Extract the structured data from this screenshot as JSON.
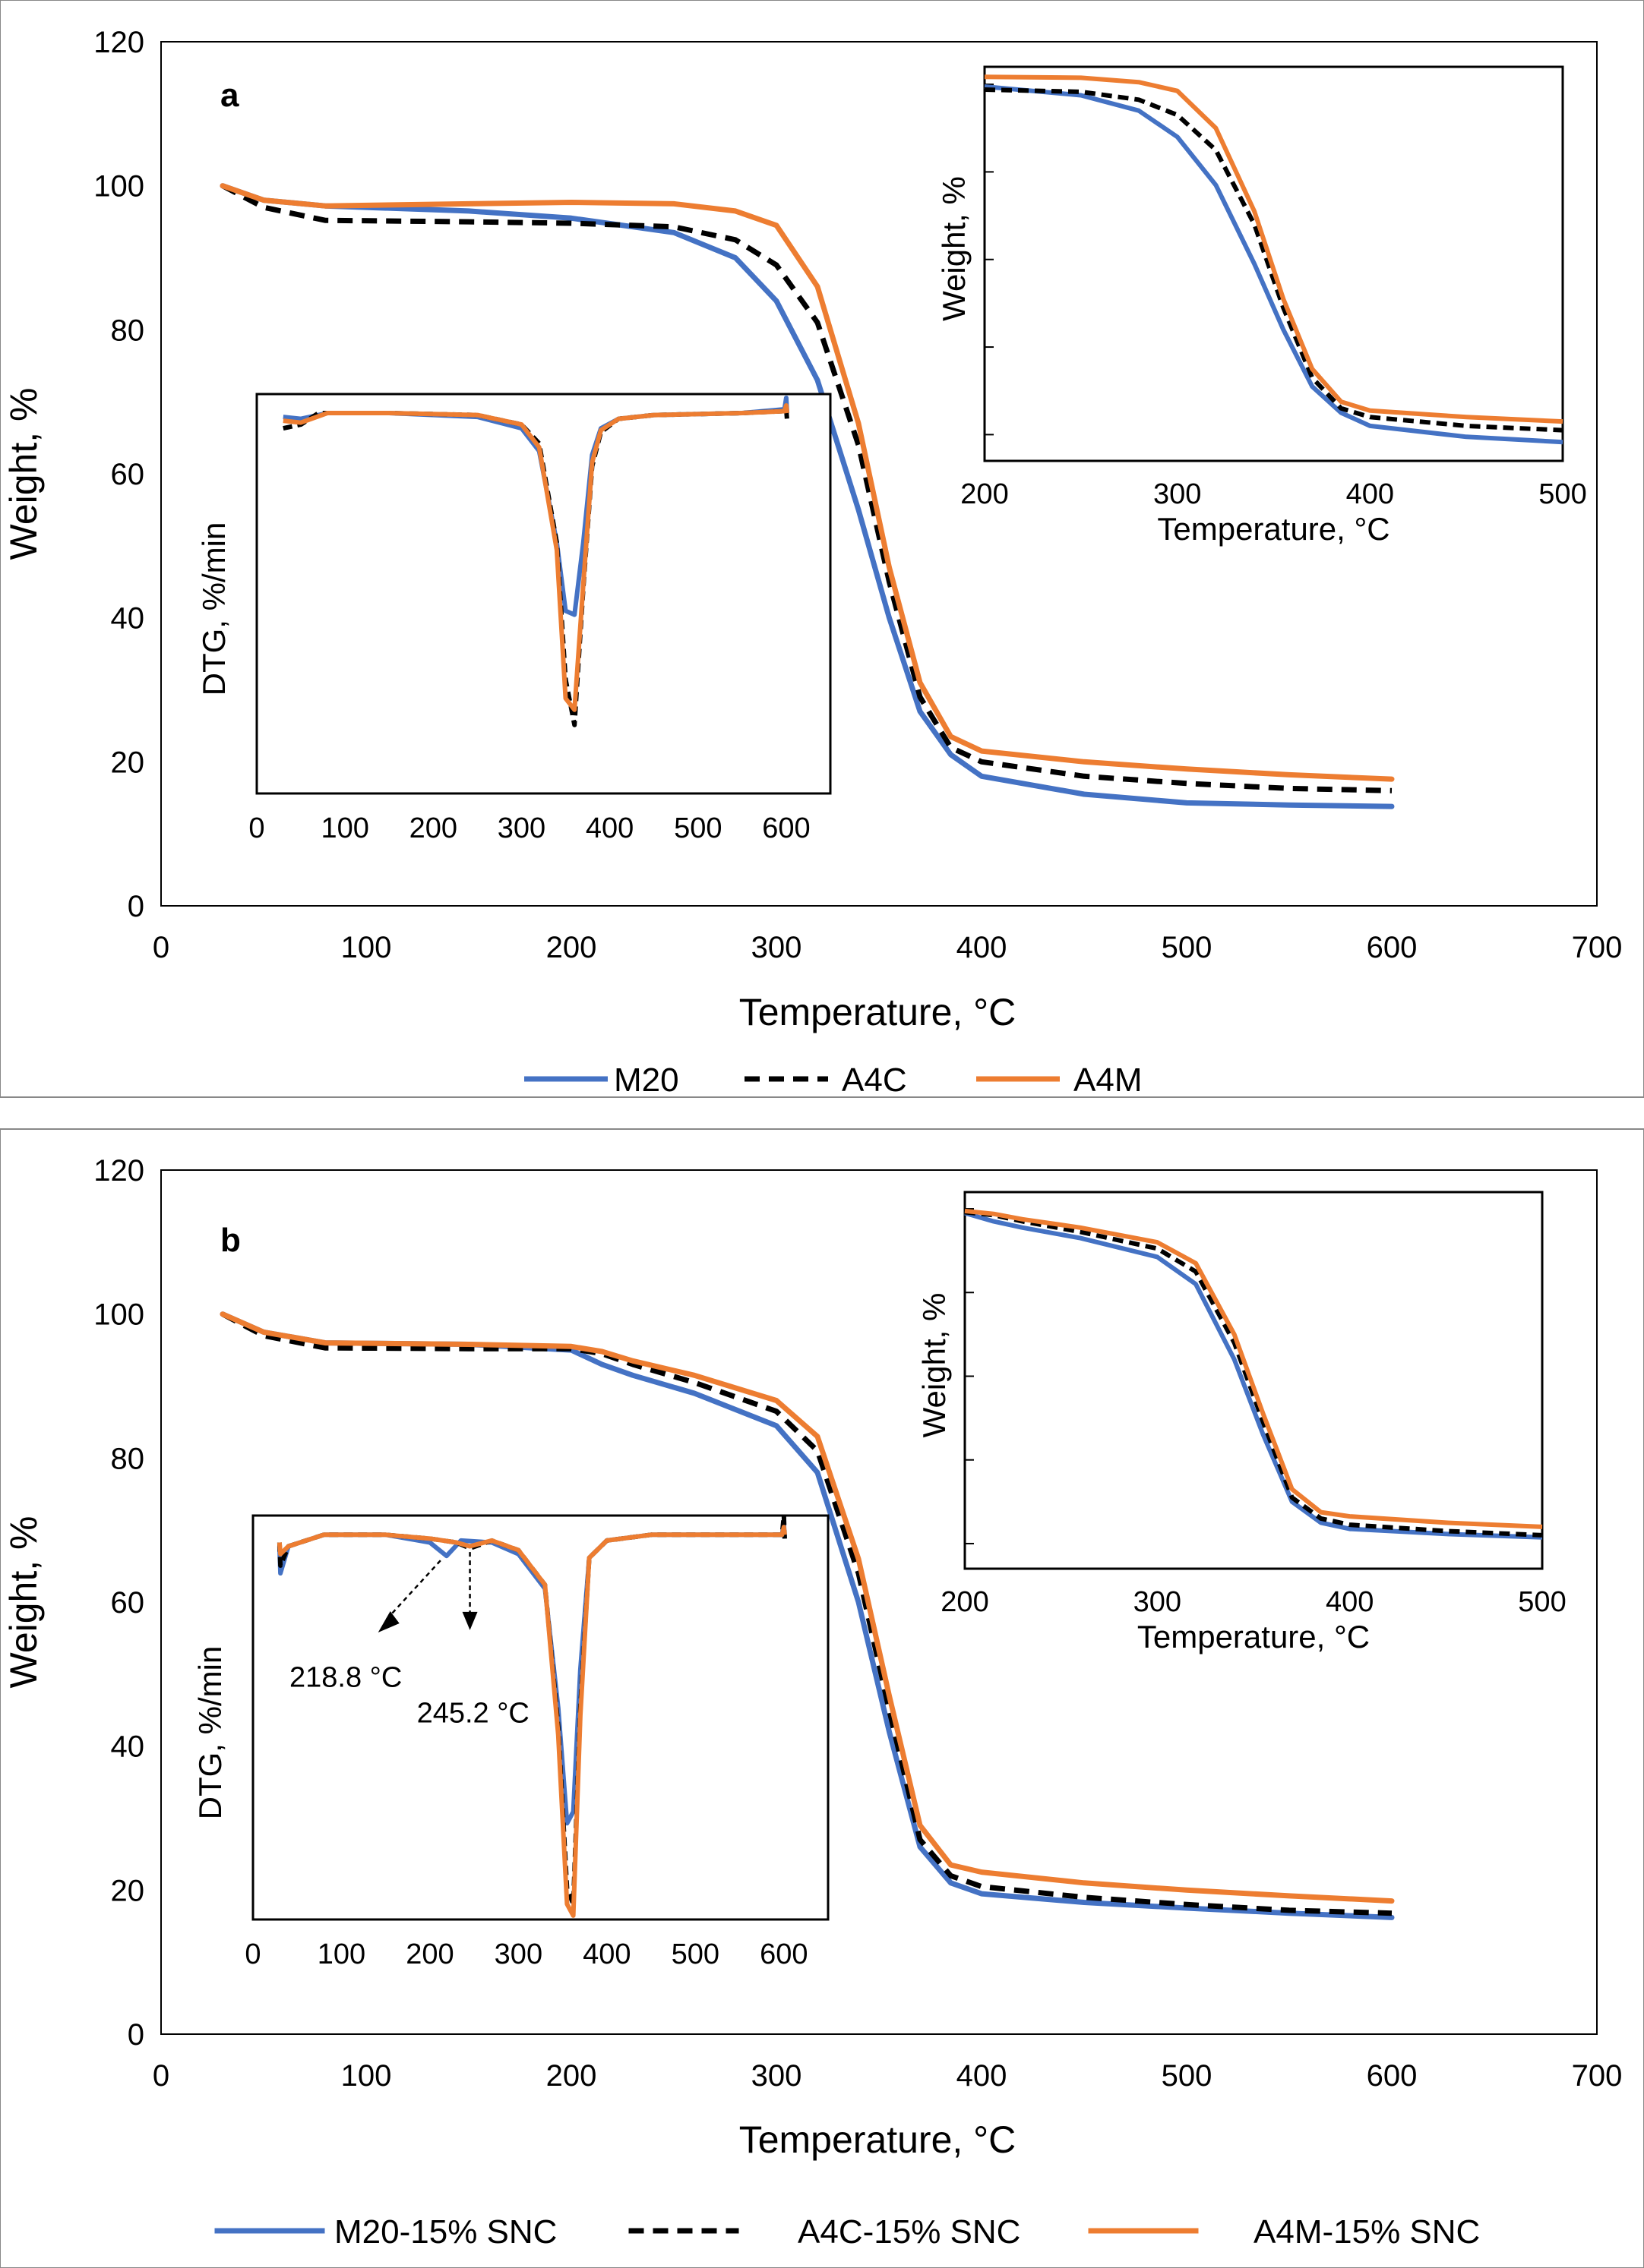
{
  "colors": {
    "M20": "#4472C4",
    "A4C": "#000000",
    "A4M": "#ED7D31",
    "axis": "#000000",
    "plot_border": "#000000"
  },
  "chart_data": [
    {
      "panel": "a",
      "type": "line",
      "xlabel": "Temperature, °C",
      "ylabel": "Weight, %",
      "xlim": [
        0,
        700
      ],
      "ylim": [
        0,
        120
      ],
      "xticks": [
        0,
        100,
        200,
        300,
        400,
        500,
        600,
        700
      ],
      "yticks": [
        0,
        20,
        40,
        60,
        80,
        100,
        120
      ],
      "legend": [
        "M20",
        "A4C",
        "A4M"
      ],
      "series": [
        {
          "name": "M20",
          "style": "solid",
          "color_key": "M20",
          "x": [
            30,
            50,
            80,
            150,
            200,
            250,
            280,
            300,
            320,
            340,
            355,
            370,
            385,
            400,
            450,
            500,
            550,
            600
          ],
          "y": [
            100,
            98,
            97.2,
            96.5,
            95.5,
            93.5,
            90,
            84,
            73,
            55,
            40,
            27,
            21,
            18,
            15.5,
            14.3,
            14,
            13.8
          ]
        },
        {
          "name": "A4C",
          "style": "dashed",
          "color_key": "A4C",
          "x": [
            30,
            50,
            80,
            150,
            200,
            250,
            280,
            300,
            320,
            340,
            355,
            370,
            385,
            400,
            450,
            500,
            550,
            600
          ],
          "y": [
            100,
            97,
            95.2,
            95,
            94.8,
            94.3,
            92.5,
            89,
            81,
            64,
            45,
            29,
            22,
            20,
            18,
            17,
            16.3,
            16
          ]
        },
        {
          "name": "A4M",
          "style": "solid",
          "color_key": "A4M",
          "x": [
            30,
            50,
            80,
            150,
            200,
            250,
            280,
            300,
            320,
            340,
            355,
            370,
            385,
            400,
            450,
            500,
            550,
            600
          ],
          "y": [
            100,
            98,
            97.2,
            97.5,
            97.7,
            97.5,
            96.5,
            94.5,
            86,
            67,
            47,
            31,
            23.5,
            21.5,
            20,
            19,
            18.2,
            17.6
          ]
        }
      ],
      "insets": [
        {
          "type": "line",
          "ylabel": "DTG, %/min",
          "xlim": [
            0,
            650
          ],
          "xticks": [
            0,
            100,
            200,
            300,
            400,
            500,
            600
          ],
          "ylim": [
            -10,
            0.5
          ],
          "series": [
            {
              "name": "M20",
              "x": [
                30,
                50,
                80,
                150,
                250,
                300,
                320,
                340,
                350,
                360,
                370,
                380,
                390,
                410,
                450,
                550,
                598,
                600,
                601
              ],
              "y": [
                -0.1,
                -0.15,
                0,
                0,
                -0.1,
                -0.4,
                -1,
                -3.4,
                -5.2,
                -5.3,
                -3.4,
                -1.1,
                -0.4,
                -0.15,
                -0.05,
                0,
                0.1,
                0.4,
                0
              ]
            },
            {
              "name": "A4C",
              "x": [
                30,
                50,
                70,
                150,
                250,
                300,
                320,
                340,
                350,
                360,
                370,
                380,
                390,
                410,
                450,
                550,
                598,
                600,
                601
              ],
              "y": [
                -0.4,
                -0.3,
                0,
                0,
                -0.05,
                -0.3,
                -0.8,
                -3.4,
                -7,
                -8.2,
                -4.6,
                -1.4,
                -0.5,
                -0.15,
                -0.05,
                0,
                0.05,
                0.1,
                -0.2
              ]
            },
            {
              "name": "A4M",
              "x": [
                30,
                50,
                80,
                150,
                250,
                300,
                320,
                340,
                350,
                360,
                370,
                380,
                390,
                410,
                450,
                550,
                598,
                600,
                601
              ],
              "y": [
                -0.2,
                -0.25,
                0,
                0,
                -0.05,
                -0.3,
                -0.9,
                -3.6,
                -7.5,
                -7.8,
                -4.5,
                -1.3,
                -0.45,
                -0.15,
                -0.05,
                0,
                0.05,
                0.2,
                0
              ]
            }
          ]
        },
        {
          "type": "line",
          "ylabel": "Weight, %",
          "xlabel": "Temperature, °C",
          "xlim": [
            200,
            500
          ],
          "xticks": [
            200,
            300,
            400,
            500
          ],
          "ylim": [
            10,
            100
          ],
          "series": [
            {
              "name": "M20",
              "x": [
                200,
                250,
                280,
                300,
                320,
                340,
                355,
                370,
                385,
                400,
                450,
                500
              ],
              "y": [
                95.5,
                93.5,
                90,
                84,
                73,
                55,
                40,
                27,
                21,
                18,
                15.5,
                14.3
              ]
            },
            {
              "name": "A4C",
              "x": [
                200,
                250,
                280,
                300,
                320,
                340,
                355,
                370,
                385,
                400,
                450,
                500
              ],
              "y": [
                94.8,
                94.3,
                92.5,
                89,
                81,
                64,
                45,
                29,
                22,
                20,
                18,
                17
              ]
            },
            {
              "name": "A4M",
              "x": [
                200,
                250,
                280,
                300,
                320,
                340,
                355,
                370,
                385,
                400,
                450,
                500
              ],
              "y": [
                97.7,
                97.5,
                96.5,
                94.5,
                86,
                67,
                47,
                31,
                23.5,
                21.5,
                20,
                19
              ]
            }
          ]
        }
      ]
    },
    {
      "panel": "b",
      "type": "line",
      "xlabel": "Temperature, °C",
      "ylabel": "Weight, %",
      "xlim": [
        0,
        700
      ],
      "ylim": [
        0,
        120
      ],
      "xticks": [
        0,
        100,
        200,
        300,
        400,
        500,
        600,
        700
      ],
      "yticks": [
        0,
        20,
        40,
        60,
        80,
        100,
        120
      ],
      "legend": [
        "M20-15% SNC",
        "A4C-15% SNC",
        "A4M-15% SNC"
      ],
      "series": [
        {
          "name": "M20-15% SNC",
          "style": "solid",
          "color_key": "M20",
          "x": [
            30,
            50,
            80,
            150,
            200,
            215,
            230,
            260,
            300,
            320,
            340,
            355,
            370,
            385,
            400,
            450,
            500,
            550,
            600
          ],
          "y": [
            100,
            97.5,
            96,
            95.8,
            95,
            93,
            91.5,
            89,
            84.5,
            78,
            60,
            42,
            26,
            21,
            19.5,
            18.3,
            17.5,
            16.8,
            16.2
          ]
        },
        {
          "name": "A4C-15% SNC",
          "style": "dashed",
          "color_key": "A4C",
          "x": [
            30,
            50,
            80,
            150,
            200,
            215,
            230,
            260,
            300,
            320,
            340,
            355,
            370,
            385,
            400,
            450,
            500,
            550,
            600
          ],
          "y": [
            100,
            97,
            95.3,
            95.2,
            95.2,
            94.5,
            93,
            90.5,
            86.5,
            81,
            64,
            45,
            27,
            22,
            20.5,
            19,
            18,
            17.2,
            16.8
          ]
        },
        {
          "name": "A4M-15% SNC",
          "style": "solid",
          "color_key": "A4M",
          "x": [
            30,
            50,
            80,
            150,
            200,
            215,
            230,
            260,
            300,
            320,
            340,
            355,
            370,
            385,
            400,
            450,
            500,
            550,
            600
          ],
          "y": [
            100,
            97.5,
            96,
            95.8,
            95.5,
            94.8,
            93.5,
            91.5,
            88,
            83,
            66,
            47,
            29,
            23.5,
            22.5,
            21,
            20,
            19.2,
            18.5
          ]
        }
      ],
      "insets": [
        {
          "type": "line",
          "ylabel": "DTG, %/min",
          "xlim": [
            0,
            650
          ],
          "xticks": [
            0,
            100,
            200,
            300,
            400,
            500,
            600
          ],
          "ylim": [
            -10,
            0.5
          ],
          "annotations": [
            {
              "text": "218.8 °C",
              "x": 218.8
            },
            {
              "text": "245.2 °C",
              "x": 245.2
            }
          ],
          "series": [
            {
              "name": "M20-15% SNC",
              "x": [
                30,
                31,
                40,
                80,
                150,
                200,
                218.8,
                235,
                270,
                300,
                330,
                345,
                355,
                362,
                370,
                380,
                400,
                450,
                550,
                598,
                600,
                601
              ],
              "y": [
                -0.3,
                -1,
                -0.3,
                0,
                0,
                -0.2,
                -0.55,
                -0.15,
                -0.2,
                -0.5,
                -1.4,
                -4.5,
                -7.5,
                -7.2,
                -3.5,
                -0.6,
                -0.15,
                0,
                0,
                0,
                0.3,
                -0.1
              ]
            },
            {
              "name": "A4C-15% SNC",
              "x": [
                30,
                31,
                40,
                80,
                150,
                200,
                230,
                245.2,
                270,
                300,
                330,
                345,
                355,
                362,
                370,
                380,
                400,
                450,
                550,
                598,
                600,
                601
              ],
              "y": [
                -0.2,
                -0.8,
                -0.3,
                0,
                0,
                -0.1,
                -0.2,
                -0.35,
                -0.15,
                -0.4,
                -1.3,
                -5,
                -9.2,
                -9.6,
                -4.5,
                -0.6,
                -0.15,
                0,
                0,
                0,
                0.5,
                -0.1
              ]
            },
            {
              "name": "A4M-15% SNC",
              "x": [
                30,
                31,
                40,
                80,
                150,
                200,
                230,
                245,
                270,
                300,
                330,
                345,
                355,
                362,
                370,
                380,
                400,
                450,
                550,
                598,
                600,
                601
              ],
              "y": [
                -0.2,
                -0.5,
                -0.3,
                0,
                0,
                -0.1,
                -0.2,
                -0.3,
                -0.15,
                -0.4,
                -1.3,
                -5.2,
                -9.6,
                -9.9,
                -4.7,
                -0.6,
                -0.15,
                0,
                0,
                0,
                0.2,
                0
              ]
            }
          ]
        },
        {
          "type": "line",
          "ylabel": "Weight, %",
          "xlabel": "Temperature, °C",
          "xlim": [
            200,
            500
          ],
          "xticks": [
            200,
            300,
            400,
            500
          ],
          "ylim": [
            10,
            100
          ],
          "series": [
            {
              "name": "M20-15% SNC",
              "x": [
                200,
                215,
                230,
                260,
                300,
                320,
                340,
                355,
                370,
                385,
                400,
                450,
                500
              ],
              "y": [
                95,
                93,
                91.5,
                89,
                84.5,
                78,
                60,
                42,
                26,
                21,
                19.5,
                18.3,
                17.5
              ]
            },
            {
              "name": "A4C-15% SNC",
              "x": [
                200,
                215,
                230,
                260,
                300,
                320,
                340,
                355,
                370,
                385,
                400,
                450,
                500
              ],
              "y": [
                95.2,
                94.5,
                93,
                90.5,
                86.5,
                81,
                64,
                45,
                27,
                22,
                20.5,
                19,
                18
              ]
            },
            {
              "name": "A4M-15% SNC",
              "x": [
                200,
                215,
                230,
                260,
                300,
                320,
                340,
                355,
                370,
                385,
                400,
                450,
                500
              ],
              "y": [
                95.5,
                94.8,
                93.5,
                91.5,
                88,
                83,
                66,
                47,
                29,
                23.5,
                22.5,
                21,
                20
              ]
            }
          ]
        }
      ]
    }
  ]
}
